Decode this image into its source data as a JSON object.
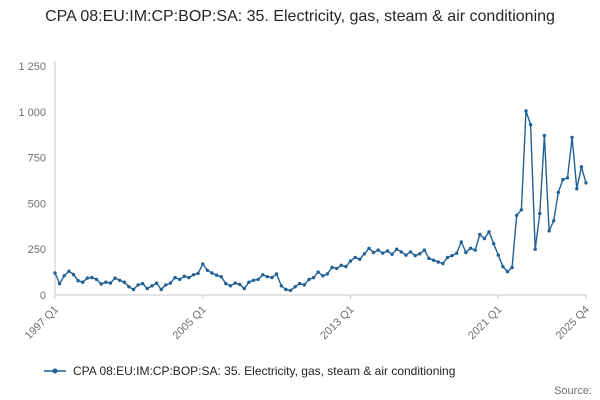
{
  "title": "CPA 08:EU:IM:CP:BOP:SA: 35. Electricity, gas, steam & air conditioning",
  "legend": {
    "label": "CPA 08:EU:IM:CP:BOP:SA: 35. Electricity, gas, steam & air conditioning"
  },
  "source_label": "Source:",
  "colors": {
    "line": "#206095",
    "axis": "#c8c8c8",
    "tick_text": "#707071",
    "title_text": "#262626"
  },
  "chart_data": {
    "type": "line",
    "title": "CPA 08:EU:IM:CP:BOP:SA: 35. Electricity, gas, steam & air conditioning",
    "xlabel": "",
    "ylabel": "",
    "ylim": [
      0,
      1250
    ],
    "grid": false,
    "legend_position": "bottom-left",
    "frequency": "quarterly",
    "y_ticks": [
      0,
      250,
      500,
      750,
      1000,
      1250
    ],
    "y_tick_labels": [
      "0",
      "250",
      "500",
      "750",
      "1 000",
      "1 250"
    ],
    "x_tick_labels": [
      "1997 Q1",
      "2005 Q1",
      "2013 Q1",
      "2021 Q1",
      "2025 Q4"
    ],
    "x_tick_indices": [
      0,
      32,
      64,
      96,
      115
    ],
    "x": [
      "1997 Q1",
      "1997 Q2",
      "1997 Q3",
      "1997 Q4",
      "1998 Q1",
      "1998 Q2",
      "1998 Q3",
      "1998 Q4",
      "1999 Q1",
      "1999 Q2",
      "1999 Q3",
      "1999 Q4",
      "2000 Q1",
      "2000 Q2",
      "2000 Q3",
      "2000 Q4",
      "2001 Q1",
      "2001 Q2",
      "2001 Q3",
      "2001 Q4",
      "2002 Q1",
      "2002 Q2",
      "2002 Q3",
      "2002 Q4",
      "2003 Q1",
      "2003 Q2",
      "2003 Q3",
      "2003 Q4",
      "2004 Q1",
      "2004 Q2",
      "2004 Q3",
      "2004 Q4",
      "2005 Q1",
      "2005 Q2",
      "2005 Q3",
      "2005 Q4",
      "2006 Q1",
      "2006 Q2",
      "2006 Q3",
      "2006 Q4",
      "2007 Q1",
      "2007 Q2",
      "2007 Q3",
      "2007 Q4",
      "2008 Q1",
      "2008 Q2",
      "2008 Q3",
      "2008 Q4",
      "2009 Q1",
      "2009 Q2",
      "2009 Q3",
      "2009 Q4",
      "2010 Q1",
      "2010 Q2",
      "2010 Q3",
      "2010 Q4",
      "2011 Q1",
      "2011 Q2",
      "2011 Q3",
      "2011 Q4",
      "2012 Q1",
      "2012 Q2",
      "2012 Q3",
      "2012 Q4",
      "2013 Q1",
      "2013 Q2",
      "2013 Q3",
      "2013 Q4",
      "2014 Q1",
      "2014 Q2",
      "2014 Q3",
      "2014 Q4",
      "2015 Q1",
      "2015 Q2",
      "2015 Q3",
      "2015 Q4",
      "2016 Q1",
      "2016 Q2",
      "2016 Q3",
      "2016 Q4",
      "2017 Q1",
      "2017 Q2",
      "2017 Q3",
      "2017 Q4",
      "2018 Q1",
      "2018 Q2",
      "2018 Q3",
      "2018 Q4",
      "2019 Q1",
      "2019 Q2",
      "2019 Q3",
      "2019 Q4",
      "2020 Q1",
      "2020 Q2",
      "2020 Q3",
      "2020 Q4",
      "2021 Q1",
      "2021 Q2",
      "2021 Q3",
      "2021 Q4",
      "2022 Q1",
      "2022 Q2",
      "2022 Q3",
      "2022 Q4",
      "2023 Q1",
      "2023 Q2",
      "2023 Q3",
      "2023 Q4",
      "2024 Q1",
      "2024 Q2",
      "2024 Q3",
      "2024 Q4",
      "2025 Q1",
      "2025 Q2",
      "2025 Q3",
      "2025 Q4"
    ],
    "values": [
      120,
      62,
      105,
      130,
      112,
      78,
      70,
      92,
      95,
      85,
      60,
      70,
      65,
      92,
      80,
      70,
      45,
      30,
      55,
      62,
      35,
      50,
      65,
      30,
      55,
      65,
      95,
      85,
      102,
      95,
      110,
      118,
      170,
      135,
      120,
      108,
      100,
      62,
      50,
      65,
      58,
      35,
      70,
      80,
      85,
      110,
      100,
      95,
      115,
      50,
      30,
      25,
      45,
      62,
      55,
      85,
      95,
      125,
      105,
      115,
      150,
      145,
      162,
      155,
      185,
      205,
      195,
      225,
      255,
      232,
      245,
      228,
      240,
      222,
      250,
      235,
      218,
      235,
      215,
      225,
      245,
      200,
      190,
      180,
      172,
      205,
      215,
      228,
      290,
      232,
      255,
      245,
      330,
      308,
      345,
      280,
      218,
      155,
      128,
      150,
      435,
      465,
      1005,
      930,
      250,
      445,
      870,
      350,
      405,
      560,
      630,
      640,
      860,
      580,
      700,
      612
    ]
  }
}
